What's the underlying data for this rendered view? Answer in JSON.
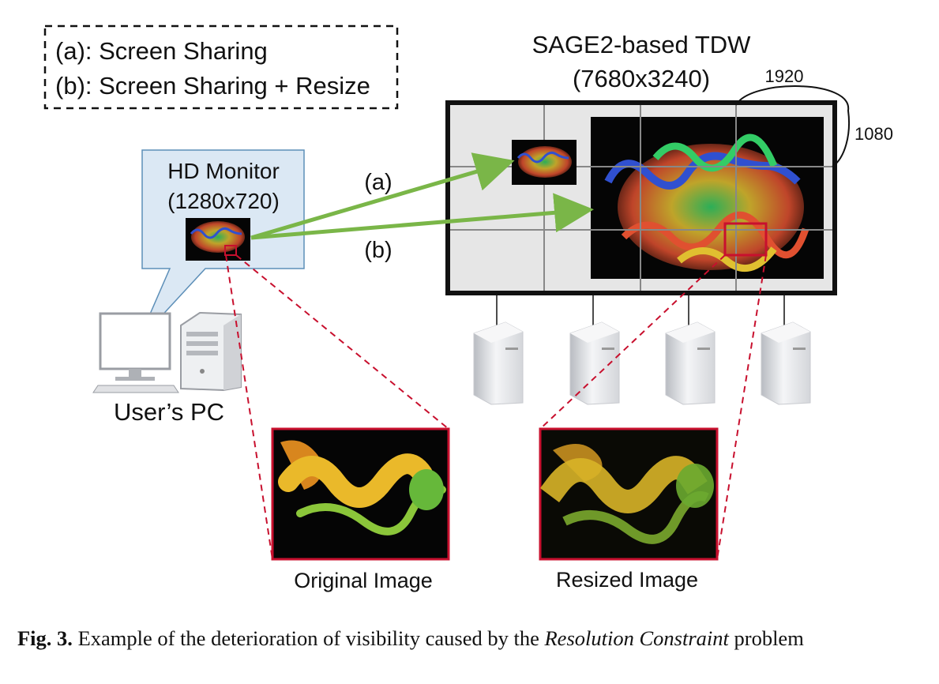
{
  "legend": {
    "item_a": "(a): Screen Sharing",
    "item_b": "(b): Screen Sharing + Resize"
  },
  "tdw": {
    "title": "SAGE2-based TDW",
    "resolution": "(7680x3240)",
    "tile_width": "1920",
    "tile_height": "1080"
  },
  "monitor": {
    "title": "HD Monitor",
    "resolution": "(1280x720)"
  },
  "user_pc_label": "User’s PC",
  "arrows": {
    "a_label": "(a)",
    "b_label": "(b)"
  },
  "zoom": {
    "original_label": "Original Image",
    "resized_label": "Resized Image"
  },
  "caption": {
    "fig_label": "Fig. 3.",
    "text_before": " Example of the deterioration of visibility caused by the ",
    "text_italic": "Resolution Constraint",
    "text_after": " problem"
  },
  "colors": {
    "arrow_green": "#7ab648",
    "zoom_red": "#c8102e",
    "bubble_fill": "#dbe8f4",
    "bubble_stroke": "#5d8fb8",
    "wall_fill": "#e6e6e6"
  }
}
